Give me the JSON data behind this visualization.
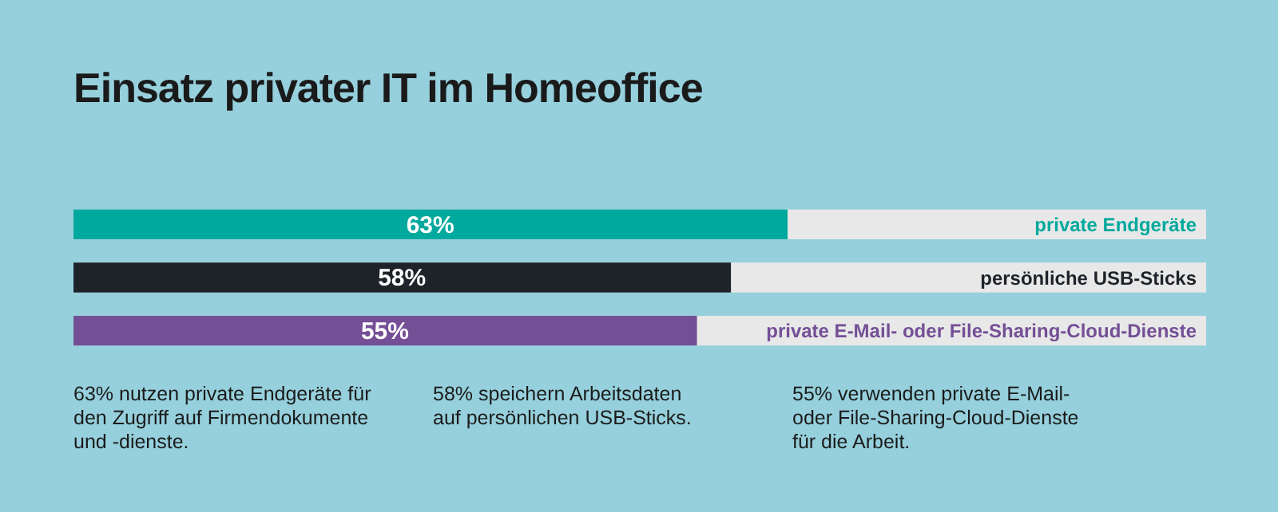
{
  "chart_data": {
    "type": "bar",
    "title": "Einsatz privater IT im Homeoffice",
    "orientation": "horizontal",
    "stacked": true,
    "categories": [
      "private Endgeräte",
      "persönliche USB-Sticks",
      "private E-Mail- oder File-Sharing-Cloud-Dienste"
    ],
    "series": [
      {
        "colors": [
          "#00a99d",
          "#1e2329",
          "#744f96"
        ],
        "values": [
          63,
          58,
          55
        ],
        "value_labels": [
          "63%",
          "58%",
          "55%"
        ]
      },
      {
        "color": "#e8e8e8",
        "values": [
          37,
          42,
          45
        ]
      }
    ],
    "xlim": [
      0,
      100
    ],
    "tick_labels": false,
    "legend": false,
    "annotations": [
      "63% nutzen private Endgeräte für\nden Zugriff auf Firmendokumente\nund -dienste.",
      "58% speichern Arbeitsdaten\nauf persönlichen USB-Sticks.",
      "55% verwenden private E-Mail-\noder File-Sharing-Cloud-Dienste\nfür die Arbeit."
    ]
  }
}
